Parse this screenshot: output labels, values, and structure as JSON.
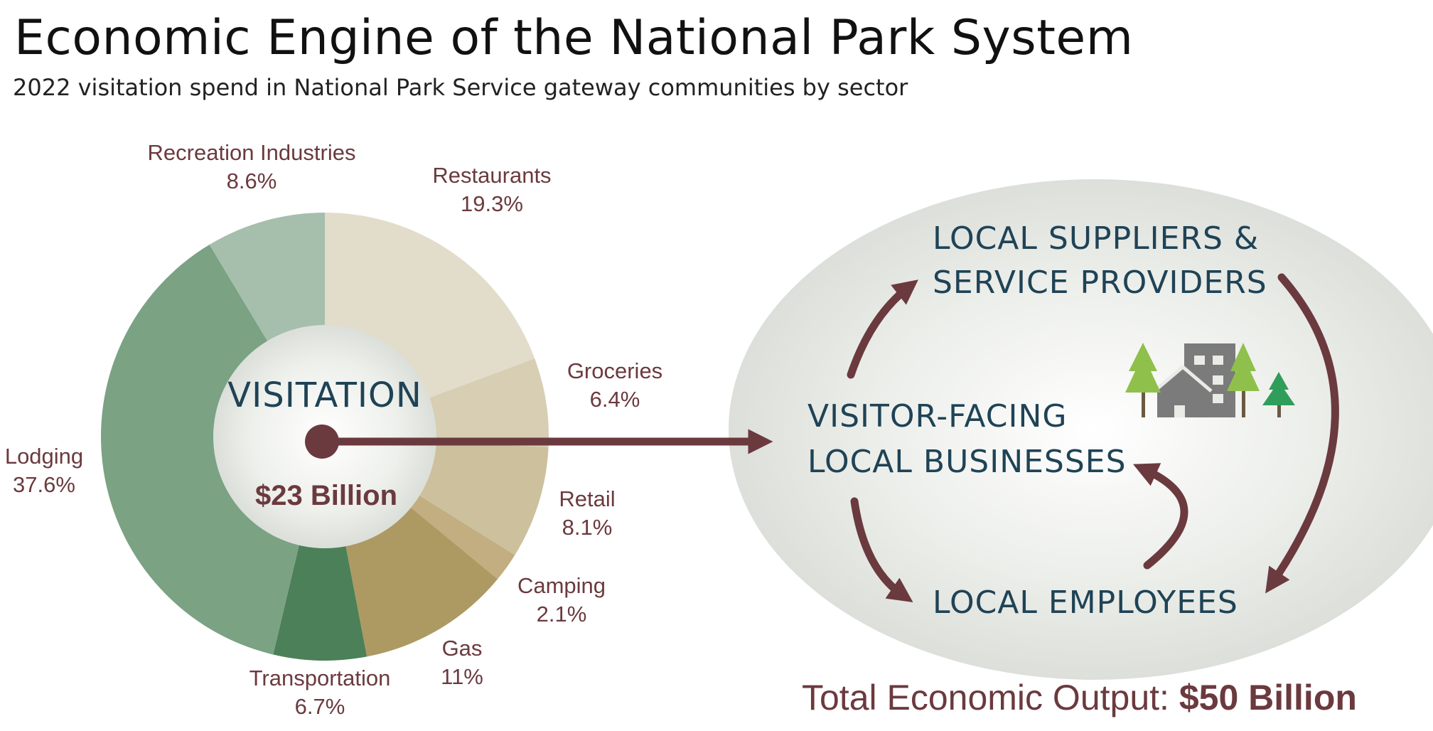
{
  "title": "Economic Engine of the National Park System",
  "subtitle": "2022 visitation spend in National Park Service gateway communities by sector",
  "chart_data": {
    "type": "pie",
    "center_label": "VISITATION",
    "center_value": "$23 Billion",
    "slices": [
      {
        "name": "Restaurants",
        "value": 19.3,
        "label": "19.3%",
        "color": "#e2dcca"
      },
      {
        "name": "Groceries",
        "value": 6.4,
        "label": "6.4%",
        "color": "#d7ceb3"
      },
      {
        "name": "Retail",
        "value": 8.1,
        "label": "8.1%",
        "color": "#cdc09d"
      },
      {
        "name": "Camping",
        "value": 2.1,
        "label": "2.1%",
        "color": "#c2ae80"
      },
      {
        "name": "Gas",
        "value": 11,
        "label": "11%",
        "color": "#ad9a63"
      },
      {
        "name": "Transportation",
        "value": 6.7,
        "label": "6.7%",
        "color": "#4c8058"
      },
      {
        "name": "Lodging",
        "value": 37.6,
        "label": "37.6%",
        "color": "#7aa283"
      },
      {
        "name": "Recreation Industries",
        "value": 8.6,
        "label": "8.6%",
        "color": "#a6bfac"
      }
    ]
  },
  "flow": {
    "suppliers_line1": "LOCAL SUPPLIERS &",
    "suppliers_line2": "SERVICE PROVIDERS",
    "businesses_line1": "VISITOR-FACING",
    "businesses_line2": "LOCAL BUSINESSES",
    "employees": "LOCAL EMPLOYEES",
    "arrow_color": "#6b3a3e",
    "text_color": "#1f4356",
    "icon": "town-with-trees-icon"
  },
  "total": {
    "label": "Total Economic Output:",
    "value": "$50 Billion"
  }
}
